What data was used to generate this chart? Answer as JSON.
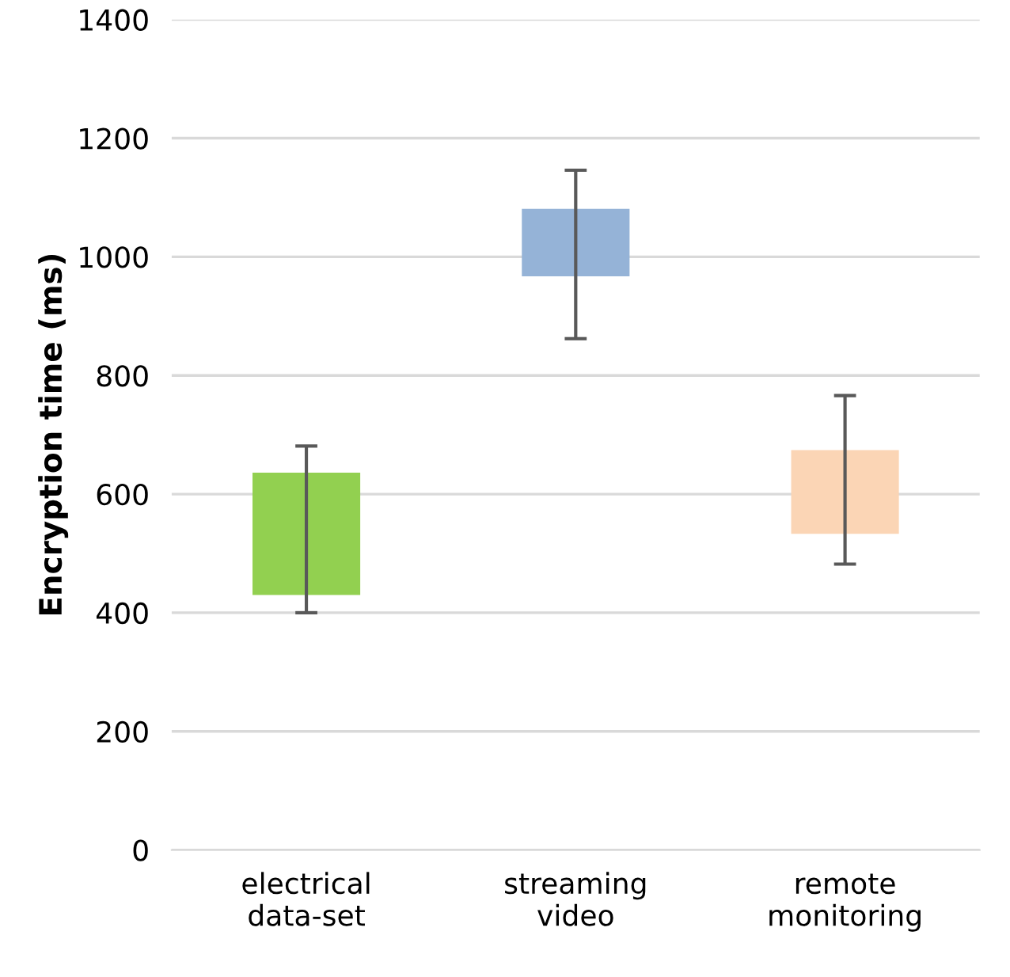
{
  "chart_data": {
    "type": "bar",
    "ylabel": "Encryption time (ms)",
    "categories": [
      "electrical\ndata-set",
      "streaming\nvideo",
      "remote\nmonitoring"
    ],
    "base": [
      430,
      967,
      533
    ],
    "values": [
      206,
      114,
      141
    ],
    "colors": [
      "#92d050",
      "#95b3d7",
      "#fbd5b5"
    ],
    "errors": [
      [
        400,
        681
      ],
      [
        862,
        1146
      ],
      [
        482,
        766
      ]
    ],
    "ylim": [
      0,
      1400
    ],
    "yticks": [
      0,
      200,
      400,
      600,
      800,
      1000,
      1200,
      1400
    ],
    "grid": "y"
  }
}
